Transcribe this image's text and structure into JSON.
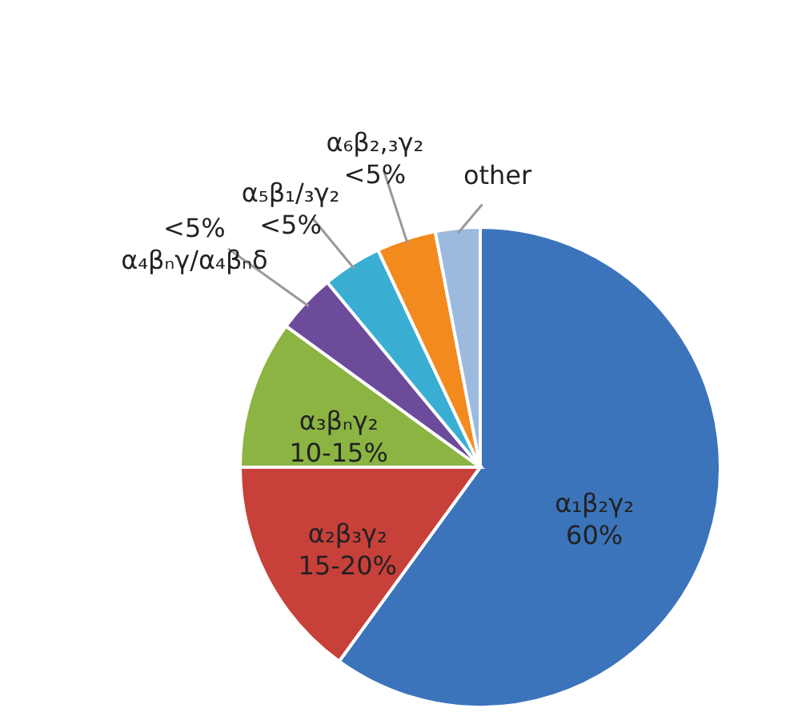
{
  "chart_data": {
    "type": "pie",
    "categories": [
      "α₁β₂γ₂",
      "α₂β₃γ₂",
      "α₃βₙγ₂",
      "α₄βₙγ/α₄βₙδ",
      "α₅β₁/₃γ₂",
      "α₆β₂,₃γ₂",
      "other"
    ],
    "values": [
      60,
      15,
      10,
      4,
      4,
      4,
      3
    ],
    "value_labels": [
      "60%",
      "15-20%",
      "10-15%",
      "<5%",
      "<5%",
      "<5%",
      null
    ],
    "colors": [
      "#3b74ba",
      "#c8403a",
      "#8cb443",
      "#6c4b9b",
      "#3aaed2",
      "#f28a1e",
      "#9cb9de"
    ],
    "legend": false
  }
}
